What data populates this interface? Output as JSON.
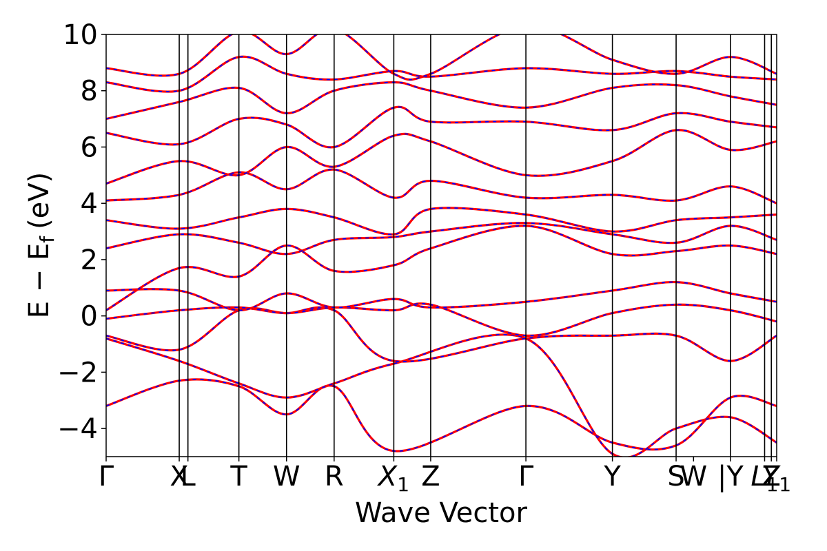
{
  "chart_data": {
    "type": "line",
    "xlabel": "Wave Vector",
    "ylabel": "E − E_f (eV)",
    "ylabel_main": "E − E",
    "ylabel_sub": "f",
    "ylabel_unit": "(eV)",
    "ylim": [
      -5,
      10
    ],
    "yticks": [
      -4,
      -2,
      0,
      2,
      4,
      6,
      8,
      10
    ],
    "ytick_labels": [
      "−4",
      "−2",
      "0",
      "2",
      "4",
      "6",
      "8",
      "10"
    ],
    "grid": false,
    "legend": "none",
    "kpath_labels": [
      {
        "main": "Γ",
        "sub": ""
      },
      {
        "main": "X",
        "sub": ""
      },
      {
        "main": "L",
        "sub": ""
      },
      {
        "main": "T",
        "sub": ""
      },
      {
        "main": "W",
        "sub": ""
      },
      {
        "main": "R",
        "sub": ""
      },
      {
        "main": "X",
        "sub": "1"
      },
      {
        "main": "Z",
        "sub": ""
      },
      {
        "main": "Γ",
        "sub": ""
      },
      {
        "main": "Y",
        "sub": ""
      },
      {
        "main": "S",
        "sub": ""
      },
      {
        "main": "W",
        "sub": ""
      },
      {
        "main": "|Y",
        "sub": ""
      },
      {
        "main": "L",
        "sub": "1"
      },
      {
        "main": "Z",
        "sub": ""
      },
      {
        "main": "Y",
        "sub": "1"
      }
    ],
    "kpath_positions": [
      0,
      0.109,
      0.122,
      0.198,
      0.269,
      0.34,
      0.429,
      0.484,
      0.626,
      0.755,
      0.85,
      0.876,
      0.931,
      0.982,
      0.992,
      1.0
    ],
    "kpath_separators": [
      0.109,
      0.122,
      0.198,
      0.269,
      0.34,
      0.429,
      0.484,
      0.626,
      0.755,
      0.85,
      0.931,
      0.982,
      0.992
    ],
    "series": [
      {
        "color": "#ff0000",
        "overlay_color": "#0000ff",
        "style": "solid with dashed overlay",
        "x": [
          0,
          0.109,
          0.198,
          0.269,
          0.34,
          0.429,
          0.626,
          0.755,
          0.85,
          0.931,
          1.0
        ],
        "values": [
          -3.2,
          -2.3,
          -2.5,
          -3.5,
          -2.5,
          -4.8,
          -3.2,
          -4.5,
          -4.6,
          -2.9,
          -3.2
        ]
      },
      {
        "color": "#ff0000",
        "overlay_color": "#0000ff",
        "style": "solid with dashed overlay",
        "x": [
          0,
          0.109,
          0.198,
          0.269,
          0.34,
          0.429,
          0.626,
          0.755,
          0.85,
          0.931,
          1.0
        ],
        "values": [
          -0.8,
          -1.6,
          -2.4,
          -2.9,
          -2.4,
          -1.7,
          -0.8,
          -4.9,
          -4.0,
          -3.6,
          -4.5
        ]
      },
      {
        "color": "#ff0000",
        "overlay_color": "#0000ff",
        "style": "solid with dashed overlay",
        "x": [
          0,
          0.109,
          0.198,
          0.269,
          0.34,
          0.429,
          0.626,
          0.755,
          0.85,
          0.931,
          1.0
        ],
        "values": [
          -0.7,
          -1.2,
          0.2,
          0.1,
          0.2,
          -1.6,
          -0.8,
          -0.7,
          -0.7,
          -1.6,
          -0.7
        ]
      },
      {
        "color": "#ff0000",
        "overlay_color": "#0000ff",
        "style": "solid with dashed overlay",
        "x": [
          0,
          0.109,
          0.198,
          0.269,
          0.34,
          0.429,
          0.484,
          0.626,
          0.755,
          0.85,
          0.931,
          1.0
        ],
        "values": [
          -0.1,
          0.2,
          0.3,
          0.1,
          0.3,
          0.2,
          0.4,
          -0.7,
          0.1,
          0.4,
          0.2,
          -0.2
        ]
      },
      {
        "color": "#ff0000",
        "overlay_color": "#0000ff",
        "style": "solid with dashed overlay",
        "x": [
          0,
          0.109,
          0.198,
          0.269,
          0.34,
          0.429,
          0.484,
          0.626,
          0.755,
          0.85,
          0.931,
          1.0
        ],
        "values": [
          0.9,
          0.9,
          0.2,
          0.8,
          0.3,
          0.6,
          0.3,
          0.5,
          0.9,
          1.2,
          0.8,
          0.5
        ]
      },
      {
        "color": "#ff0000",
        "overlay_color": "#0000ff",
        "style": "solid with dashed overlay",
        "x": [
          0,
          0.109,
          0.198,
          0.269,
          0.34,
          0.429,
          0.484,
          0.626,
          0.755,
          0.85,
          0.931,
          1.0
        ],
        "values": [
          0.2,
          1.7,
          1.4,
          2.5,
          1.6,
          1.8,
          2.4,
          3.2,
          2.2,
          2.3,
          2.5,
          2.2
        ]
      },
      {
        "color": "#ff0000",
        "overlay_color": "#0000ff",
        "style": "solid with dashed overlay",
        "x": [
          0,
          0.109,
          0.198,
          0.269,
          0.34,
          0.429,
          0.484,
          0.626,
          0.755,
          0.85,
          0.931,
          1.0
        ],
        "values": [
          2.4,
          2.9,
          2.6,
          2.2,
          2.7,
          2.8,
          3.0,
          3.3,
          2.9,
          2.6,
          3.2,
          2.7
        ]
      },
      {
        "color": "#ff0000",
        "overlay_color": "#0000ff",
        "style": "solid with dashed overlay",
        "x": [
          0,
          0.109,
          0.198,
          0.269,
          0.34,
          0.429,
          0.484,
          0.626,
          0.755,
          0.85,
          0.931,
          1.0
        ],
        "values": [
          3.4,
          3.1,
          3.5,
          3.8,
          3.5,
          2.9,
          3.8,
          3.6,
          3.0,
          3.4,
          3.5,
          3.6
        ]
      },
      {
        "color": "#ff0000",
        "overlay_color": "#0000ff",
        "style": "solid with dashed overlay",
        "x": [
          0,
          0.109,
          0.198,
          0.269,
          0.34,
          0.429,
          0.484,
          0.626,
          0.755,
          0.85,
          0.931,
          1.0
        ],
        "values": [
          4.1,
          4.3,
          5.1,
          4.5,
          5.2,
          4.2,
          4.8,
          4.2,
          4.3,
          4.1,
          4.6,
          4.0
        ]
      },
      {
        "color": "#ff0000",
        "overlay_color": "#0000ff",
        "style": "solid with dashed overlay",
        "x": [
          0,
          0.109,
          0.198,
          0.269,
          0.34,
          0.429,
          0.484,
          0.626,
          0.755,
          0.85,
          0.931,
          1.0
        ],
        "values": [
          4.7,
          5.5,
          5.0,
          6.0,
          5.3,
          6.4,
          6.2,
          5.0,
          5.5,
          6.6,
          5.9,
          6.2
        ]
      },
      {
        "color": "#ff0000",
        "overlay_color": "#0000ff",
        "style": "solid with dashed overlay",
        "x": [
          0,
          0.109,
          0.198,
          0.269,
          0.34,
          0.429,
          0.484,
          0.626,
          0.755,
          0.85,
          0.931,
          1.0
        ],
        "values": [
          6.5,
          6.1,
          7.0,
          6.8,
          6.0,
          7.4,
          6.9,
          6.9,
          6.6,
          7.2,
          6.9,
          6.7
        ]
      },
      {
        "color": "#ff0000",
        "overlay_color": "#0000ff",
        "style": "solid with dashed overlay",
        "x": [
          0,
          0.109,
          0.198,
          0.269,
          0.34,
          0.429,
          0.484,
          0.626,
          0.755,
          0.85,
          0.931,
          1.0
        ],
        "values": [
          7.0,
          7.6,
          8.1,
          7.2,
          8.0,
          8.3,
          8.0,
          7.4,
          8.1,
          8.2,
          7.8,
          7.5
        ]
      },
      {
        "color": "#ff0000",
        "overlay_color": "#0000ff",
        "style": "solid with dashed overlay",
        "x": [
          0,
          0.109,
          0.198,
          0.269,
          0.34,
          0.429,
          0.484,
          0.626,
          0.755,
          0.85,
          0.931,
          1.0
        ],
        "values": [
          8.3,
          8.0,
          9.2,
          8.6,
          8.4,
          8.7,
          8.5,
          8.8,
          8.6,
          8.7,
          8.5,
          8.4
        ]
      },
      {
        "color": "#ff0000",
        "overlay_color": "#0000ff",
        "style": "solid with dashed overlay",
        "x": [
          0,
          0.109,
          0.198,
          0.269,
          0.34,
          0.429,
          0.484,
          0.626,
          0.755,
          0.85,
          0.931,
          1.0
        ],
        "values": [
          8.8,
          8.6,
          10.1,
          9.3,
          10.2,
          8.6,
          8.6,
          10.3,
          9.1,
          8.6,
          9.2,
          8.6
        ]
      }
    ]
  }
}
